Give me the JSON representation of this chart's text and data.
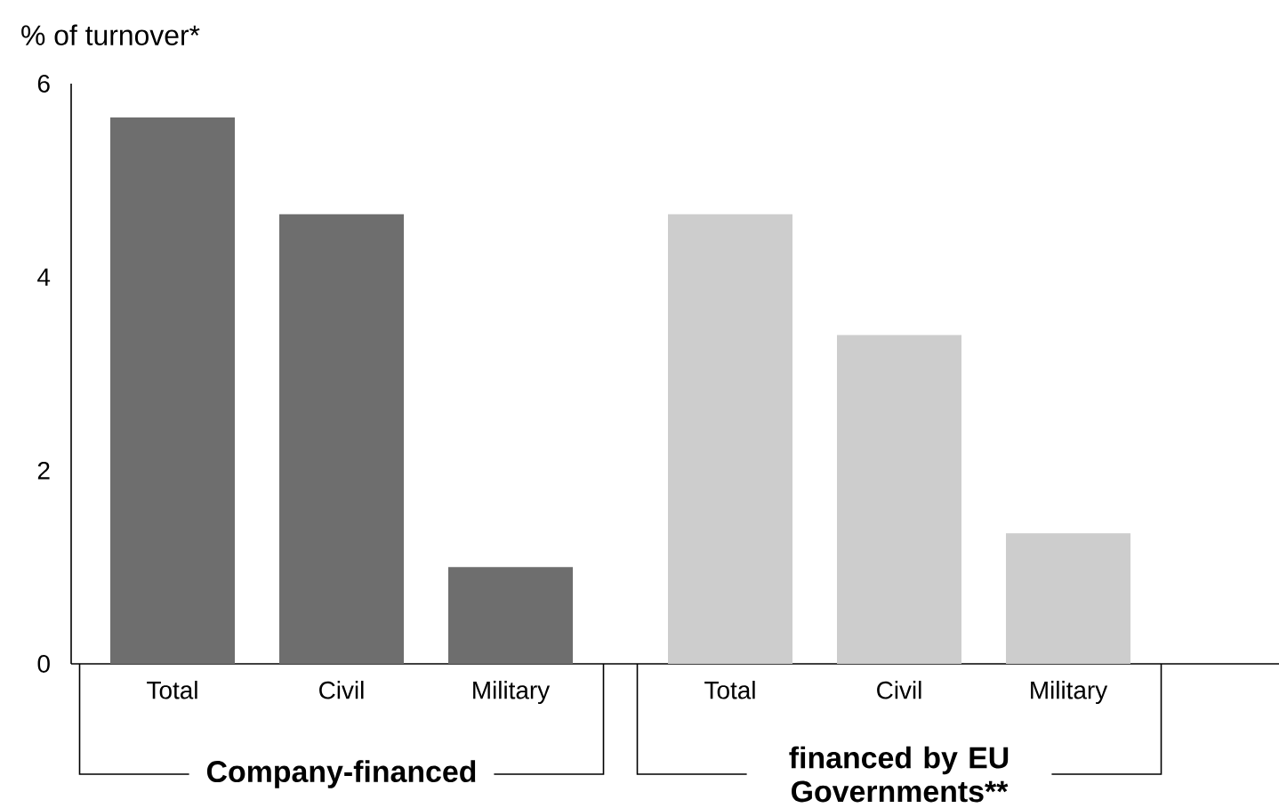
{
  "chart_data": {
    "type": "bar",
    "ylabel": "% of turnover*",
    "categories": [
      "Total",
      "Civil",
      "Military",
      "Total",
      "Civil",
      "Military"
    ],
    "values": [
      5.65,
      4.65,
      1.0,
      4.65,
      3.4,
      1.35
    ],
    "colors": [
      "#6e6e6e",
      "#6e6e6e",
      "#6e6e6e",
      "#cdcdcd",
      "#cdcdcd",
      "#cdcdcd"
    ],
    "ylim": [
      0,
      6
    ],
    "yticks": [
      0,
      2,
      4,
      6
    ],
    "annotations": [
      "Company-financed",
      "financed by EU Governments**"
    ]
  }
}
